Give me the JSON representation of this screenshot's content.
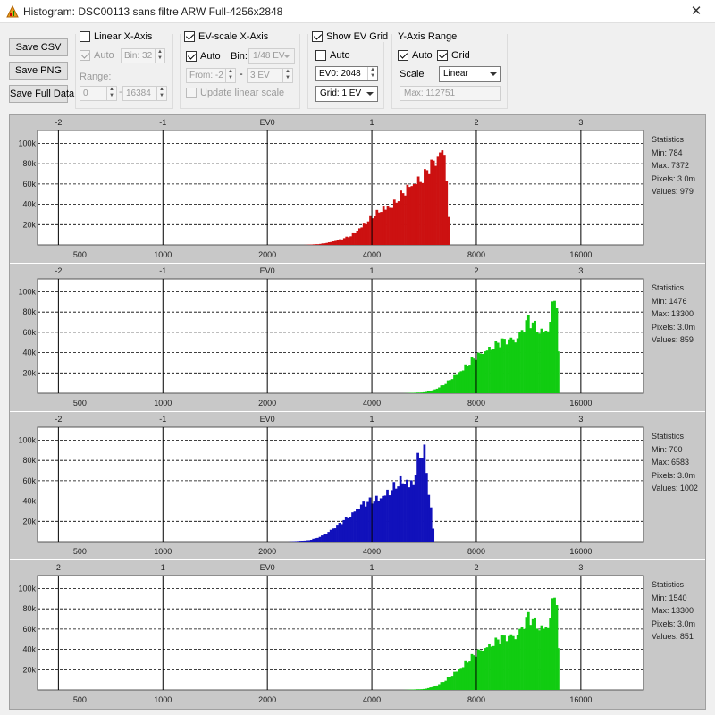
{
  "window": {
    "title": "Histogram: DSC00113 sans filtre ARW Full-4256x2848",
    "close_glyph": "✕"
  },
  "buttons": {
    "save_csv": "Save CSV",
    "save_png": "Save PNG",
    "save_full": "Save Full Data"
  },
  "linear_x": {
    "title": "Linear X-Axis",
    "checked": false,
    "auto_label": "Auto",
    "auto_checked": true,
    "bin_value": "Bin: 32",
    "range_label": "Range:",
    "range_from": "0",
    "range_to": "16384",
    "range_sep": "-"
  },
  "ev_x": {
    "title": "EV-scale X-Axis",
    "checked": true,
    "auto_label": "Auto",
    "auto_checked": true,
    "bin_label": "Bin:",
    "bin_value": "1/48 EV",
    "from_value": "From: -2",
    "to_value": "3 EV",
    "sep": "-",
    "update_label": "Update linear scale",
    "update_checked": false
  },
  "ev_grid": {
    "title": "Show EV Grid",
    "checked": true,
    "auto_label": "Auto",
    "auto_checked": false,
    "ev0_value": "EV0: 2048",
    "grid_value": "Grid: 1 EV"
  },
  "y_axis": {
    "title": "Y-Axis Range",
    "auto_label": "Auto",
    "auto_checked": true,
    "grid_label": "Grid",
    "grid_checked": true,
    "scale_label": "Scale",
    "scale_value": "Linear",
    "max_value": "Max: 112751"
  },
  "axis": {
    "ev_ticks": [
      "-2",
      "-1",
      "EV0",
      "1",
      "2",
      "3"
    ],
    "ev_ticks_last": [
      "2",
      "1",
      "EV0",
      "1",
      "2",
      "3"
    ],
    "ev_positions": [
      -2,
      -1,
      0,
      1,
      2,
      3
    ],
    "linear_ticks": [
      "500",
      "1000",
      "2000",
      "4000",
      "8000",
      "16000"
    ],
    "linear_positions": [
      -2,
      -1,
      0,
      1,
      2,
      3
    ],
    "y_ticks": [
      "20k",
      "40k",
      "60k",
      "80k",
      "100k"
    ],
    "y_values": [
      20000,
      40000,
      60000,
      80000,
      100000
    ],
    "x_range_ev": [
      -2.2,
      3.6
    ],
    "y_max": 112751
  },
  "statistics_label": "Statistics",
  "channels": [
    {
      "name": "red",
      "color": "#cc1111",
      "stats": {
        "min": "Min: 784",
        "max": "Max: 7372",
        "pixels": "Pixels: 3.0m",
        "values": "Values: 979"
      }
    },
    {
      "name": "green",
      "color": "#11cc11",
      "stats": {
        "min": "Min: 1476",
        "max": "Max: 13300",
        "pixels": "Pixels: 3.0m",
        "values": "Values: 859"
      }
    },
    {
      "name": "blue",
      "color": "#1111bb",
      "stats": {
        "min": "Min: 700",
        "max": "Max: 6583",
        "pixels": "Pixels: 3.0m",
        "values": "Values: 1002"
      }
    },
    {
      "name": "green2",
      "color": "#11cc11",
      "stats": {
        "min": "Min: 1540",
        "max": "Max: 13300",
        "pixels": "Pixels: 3.0m",
        "values": "Values: 851"
      }
    }
  ],
  "chart_data": [
    {
      "type": "area",
      "title": "",
      "xlabel": "",
      "ylabel": "",
      "x_scale": "EV (log2, EV0 = 2048)",
      "ylim": [
        0,
        112751
      ],
      "x": [
        0.35,
        0.5,
        0.6,
        0.7,
        0.8,
        0.9,
        1.0,
        1.1,
        1.2,
        1.25,
        1.3,
        1.35,
        1.4,
        1.45,
        1.5,
        1.55,
        1.6,
        1.65,
        1.7,
        1.72,
        1.75
      ],
      "y": [
        0,
        1000,
        3000,
        6000,
        10000,
        20000,
        30000,
        40000,
        44000,
        50000,
        57000,
        63000,
        68000,
        72000,
        75000,
        85000,
        90000,
        100000,
        108000,
        60000,
        0
      ]
    },
    {
      "type": "area",
      "title": "",
      "xlabel": "",
      "ylabel": "",
      "x_scale": "EV (log2, EV0 = 2048)",
      "ylim": [
        0,
        112751
      ],
      "x": [
        1.3,
        1.5,
        1.6,
        1.7,
        1.8,
        1.9,
        2.0,
        2.1,
        2.2,
        2.3,
        2.4,
        2.5,
        2.6,
        2.65,
        2.7,
        2.75,
        2.78,
        2.8
      ],
      "y": [
        0,
        1000,
        4000,
        10000,
        20000,
        30000,
        40000,
        48000,
        54000,
        58000,
        62000,
        80000,
        70000,
        68000,
        72000,
        112000,
        80000,
        0
      ]
    },
    {
      "type": "area",
      "title": "",
      "xlabel": "",
      "ylabel": "",
      "x_scale": "EV (log2, EV0 = 2048)",
      "ylim": [
        0,
        112751
      ],
      "x": [
        0.2,
        0.4,
        0.5,
        0.6,
        0.7,
        0.8,
        0.9,
        1.0,
        1.1,
        1.15,
        1.2,
        1.25,
        1.3,
        1.35,
        1.4,
        1.45,
        1.5,
        1.55,
        1.6
      ],
      "y": [
        0,
        1500,
        5000,
        12000,
        20000,
        30000,
        40000,
        45000,
        50000,
        54000,
        58000,
        63000,
        68000,
        65000,
        66000,
        95000,
        98000,
        50000,
        0
      ]
    },
    {
      "type": "area",
      "title": "",
      "xlabel": "",
      "ylabel": "",
      "x_scale": "EV (log2, EV0 = 2048)",
      "ylim": [
        0,
        112751
      ],
      "x": [
        1.3,
        1.5,
        1.6,
        1.7,
        1.8,
        1.9,
        2.0,
        2.1,
        2.2,
        2.3,
        2.4,
        2.5,
        2.6,
        2.65,
        2.7,
        2.75,
        2.78,
        2.8
      ],
      "y": [
        0,
        1000,
        4000,
        10000,
        20000,
        30000,
        40000,
        48000,
        54000,
        58000,
        62000,
        80000,
        70000,
        68000,
        72000,
        112000,
        80000,
        0
      ]
    }
  ]
}
